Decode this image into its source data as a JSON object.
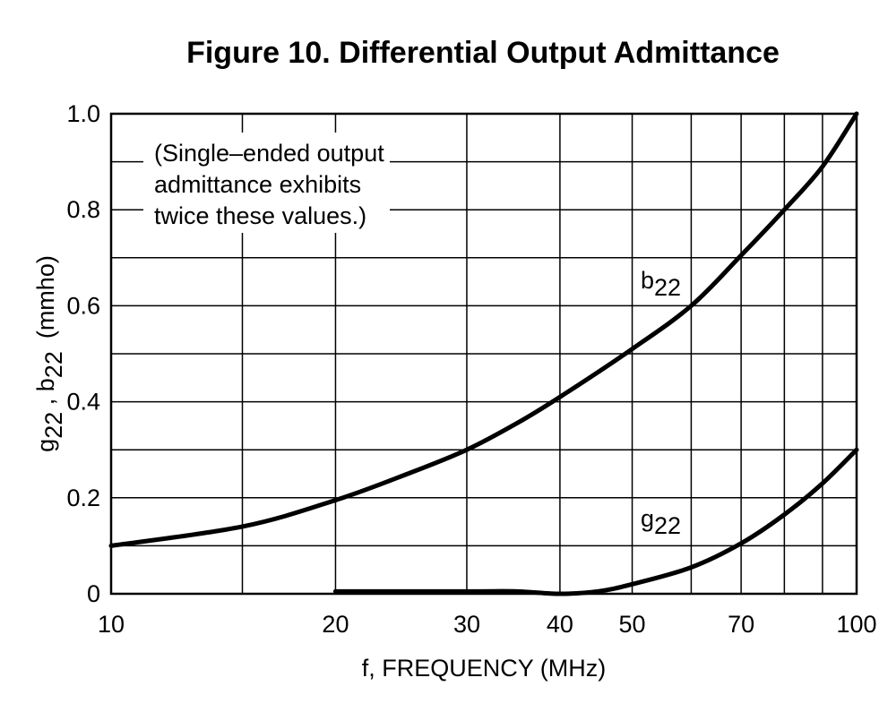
{
  "chart_data": {
    "type": "line",
    "title": "Figure 10. Differential Output Admittance",
    "xlabel": "f, FREQUENCY (MHz)",
    "ylabel": {
      "g": "g",
      "g_sub": "22",
      "sep": " , ",
      "b": "b",
      "b_sub": "22",
      "unit": "(mmho)"
    },
    "xscale": "log",
    "xlim": [
      10,
      100
    ],
    "ylim": [
      0,
      1.0
    ],
    "x_ticks": [
      10,
      20,
      30,
      40,
      50,
      70,
      100
    ],
    "x_tick_labels": [
      "10",
      "20",
      "30",
      "40",
      "50",
      "70",
      "100"
    ],
    "y_ticks": [
      0,
      0.2,
      0.4,
      0.6,
      0.8,
      1.0
    ],
    "y_tick_labels": [
      "0",
      "0.2",
      "0.4",
      "0.6",
      "0.8",
      "1.0"
    ],
    "note": [
      "(Single–ended output",
      "admittance exhibits",
      "twice these values.)"
    ],
    "series": [
      {
        "name": "b22",
        "label_main": "b",
        "label_sub": "22",
        "x": [
          10,
          15,
          20,
          25,
          30,
          35,
          40,
          50,
          60,
          70,
          80,
          90,
          100
        ],
        "y": [
          0.1,
          0.14,
          0.195,
          0.25,
          0.3,
          0.355,
          0.41,
          0.51,
          0.6,
          0.705,
          0.8,
          0.89,
          1.0
        ]
      },
      {
        "name": "g22",
        "label_main": "g",
        "label_sub": "22",
        "x": [
          20,
          30,
          35,
          40,
          45,
          50,
          60,
          70,
          80,
          90,
          100
        ],
        "y": [
          0.005,
          0.005,
          0.005,
          0.0,
          0.005,
          0.02,
          0.055,
          0.105,
          0.165,
          0.23,
          0.3
        ]
      }
    ]
  }
}
